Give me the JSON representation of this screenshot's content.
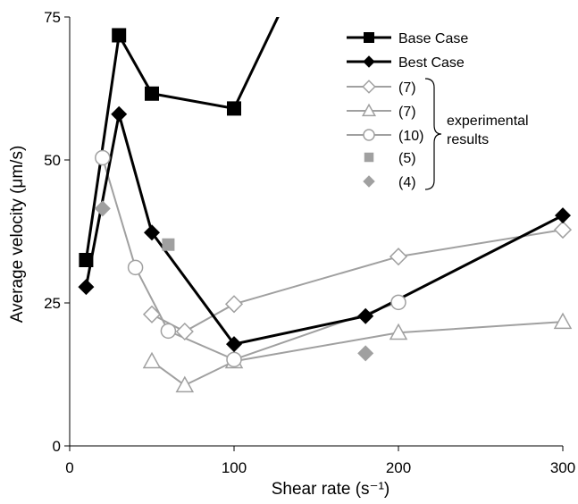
{
  "chart_data": {
    "type": "line",
    "xlabel": "Shear rate (s⁻¹)",
    "ylabel": "Average velocity (μm/s)",
    "xlim": [
      0,
      300
    ],
    "ylim": [
      0,
      75
    ],
    "xticks": [
      "0",
      "100",
      "200",
      "300"
    ],
    "yticks": [
      "0",
      "25",
      "50",
      "75"
    ],
    "grid": false,
    "legend_position": "top-right",
    "legend_bracket_label": [
      "experimental",
      "results"
    ],
    "series": [
      {
        "name": "Base Case",
        "marker": "square",
        "color": "#000000",
        "line": true,
        "points": [
          [
            10,
            32.5
          ],
          [
            30,
            71.8
          ],
          [
            50,
            61.6
          ],
          [
            100,
            59.0
          ],
          [
            130,
            77
          ]
        ]
      },
      {
        "name": "Best Case",
        "marker": "diamond",
        "color": "#000000",
        "line": true,
        "points": [
          [
            10,
            27.8
          ],
          [
            30,
            58.0
          ],
          [
            50,
            37.3
          ],
          [
            100,
            17.8
          ],
          [
            180,
            22.7
          ],
          [
            300,
            40.3
          ]
        ]
      },
      {
        "name": "(7)",
        "marker": "diamond-open",
        "color": "#a0a0a0",
        "line": true,
        "points": [
          [
            50,
            23.0
          ],
          [
            70,
            20.0
          ],
          [
            100,
            24.8
          ],
          [
            200,
            33.1
          ],
          [
            300,
            37.8
          ]
        ]
      },
      {
        "name": "(7)",
        "marker": "triangle-open",
        "color": "#a0a0a0",
        "line": true,
        "points": [
          [
            50,
            14.8
          ],
          [
            70,
            10.6
          ],
          [
            100,
            14.8
          ],
          [
            200,
            19.8
          ],
          [
            300,
            21.7
          ]
        ]
      },
      {
        "name": "(10)",
        "marker": "circle-open",
        "color": "#a0a0a0",
        "line": true,
        "points": [
          [
            20,
            50.4
          ],
          [
            40,
            31.2
          ],
          [
            60,
            20.1
          ],
          [
            100,
            15.1
          ],
          [
            200,
            25.1
          ]
        ]
      },
      {
        "name": "(5)",
        "marker": "square-filled",
        "color": "#a0a0a0",
        "line": false,
        "points": [
          [
            60,
            35.2
          ]
        ]
      },
      {
        "name": "(4)",
        "marker": "diamond-filled",
        "color": "#a0a0a0",
        "line": false,
        "points": [
          [
            20,
            41.5
          ],
          [
            180,
            16.2
          ]
        ]
      }
    ]
  }
}
